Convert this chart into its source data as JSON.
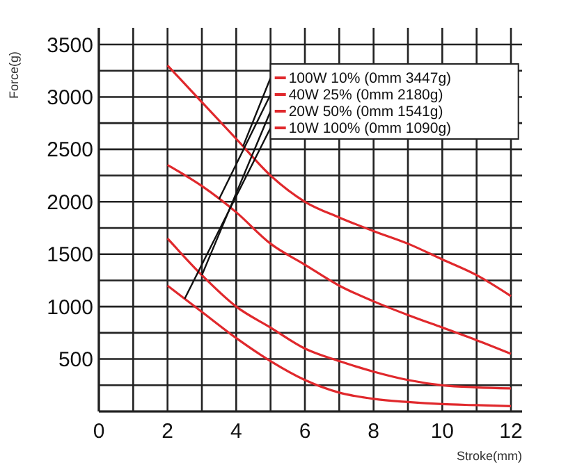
{
  "chart_data": {
    "type": "line",
    "xlabel": "Stroke(mm)",
    "ylabel": "Force(g)",
    "x": [
      2,
      3,
      4,
      5,
      6,
      7,
      8,
      9,
      10,
      11,
      12
    ],
    "series": [
      {
        "name": "100W 10% (0mm 3447g)",
        "color": "#e0282c",
        "values": [
          3300,
          2950,
          2600,
          2250,
          2000,
          1850,
          1720,
          1600,
          1450,
          1300,
          1100
        ]
      },
      {
        "name": "40W 25% (0mm 2180g)",
        "color": "#e0282c",
        "values": [
          2350,
          2150,
          1900,
          1600,
          1400,
          1200,
          1050,
          920,
          800,
          680,
          550
        ]
      },
      {
        "name": "20W 50% (0mm 1541g)",
        "color": "#e0282c",
        "values": [
          1650,
          1300,
          1000,
          800,
          600,
          480,
          380,
          300,
          250,
          230,
          220
        ]
      },
      {
        "name": "10W 100% (0mm 1090g)",
        "color": "#e0282c",
        "values": [
          1200,
          950,
          700,
          480,
          300,
          180,
          120,
          90,
          70,
          60,
          50
        ]
      }
    ],
    "xlim": [
      0,
      12
    ],
    "xticks": [
      0,
      {
        "value": 1,
        "label": null
      },
      2,
      {
        "value": 3,
        "label": null
      },
      4,
      {
        "value": 5,
        "label": null
      },
      6,
      {
        "value": 7,
        "label": null
      },
      8,
      {
        "value": 9,
        "label": null
      },
      10,
      {
        "value": 11,
        "label": null
      },
      12
    ],
    "ylim": [
      0,
      3500
    ],
    "yticks": [
      {
        "value": 0,
        "label": null
      },
      {
        "value": 250,
        "label": null
      },
      500,
      {
        "value": 750,
        "label": null
      },
      1000,
      {
        "value": 1250,
        "label": null
      },
      1500,
      {
        "value": 1750,
        "label": null
      },
      2000,
      {
        "value": 2250,
        "label": null
      },
      2500,
      {
        "value": 2750,
        "label": null
      },
      3000,
      {
        "value": 3250,
        "label": null
      },
      3500
    ],
    "grid": true,
    "legend": "top right",
    "marker": "none",
    "line_style": "solid"
  }
}
